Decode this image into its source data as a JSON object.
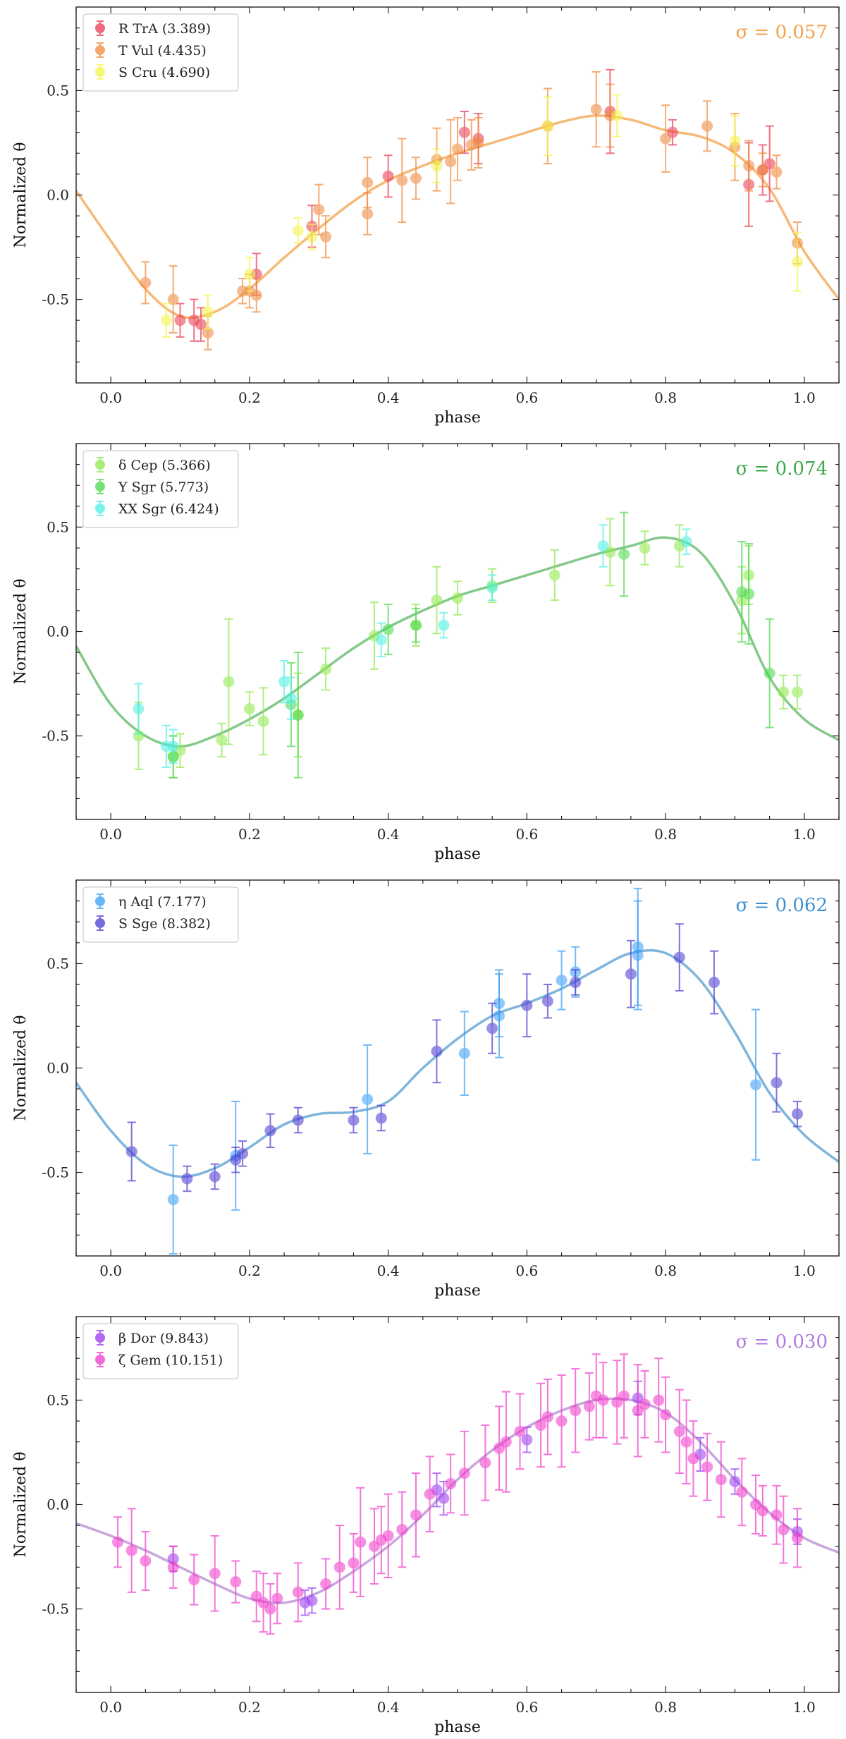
{
  "chart_data": [
    {
      "type": "scatter",
      "xlabel": "phase",
      "ylabel": "Normalized θ",
      "xlim": [
        -0.05,
        1.05
      ],
      "ylim": [
        -0.9,
        0.9
      ],
      "xticks": [
        "0.0",
        "0.2",
        "0.4",
        "0.6",
        "0.8",
        "1.0"
      ],
      "xtick_values": [
        0.0,
        0.2,
        0.4,
        0.6,
        0.8,
        1.0
      ],
      "yticks": [
        "-0.5",
        "0.0",
        "0.5"
      ],
      "ytick_values": [
        -0.5,
        0.0,
        0.5
      ],
      "annotation": "σ = 0.057",
      "annotation_color": "#f5a04a",
      "legend_position": "top-left",
      "fit_color": "#f7b978",
      "fit_curve": {
        "x": [
          -0.05,
          0.0,
          0.05,
          0.1,
          0.15,
          0.2,
          0.25,
          0.3,
          0.35,
          0.4,
          0.45,
          0.5,
          0.55,
          0.6,
          0.65,
          0.7,
          0.75,
          0.8,
          0.85,
          0.9,
          0.95,
          1.0,
          1.05
        ],
        "y": [
          0.02,
          -0.22,
          -0.45,
          -0.58,
          -0.56,
          -0.45,
          -0.3,
          -0.16,
          -0.03,
          0.07,
          0.14,
          0.2,
          0.25,
          0.3,
          0.35,
          0.38,
          0.36,
          0.31,
          0.28,
          0.2,
          0.03,
          -0.27,
          -0.5
        ]
      },
      "series": [
        {
          "name": "R TrA (3.389)",
          "color": "#e8384f",
          "x": [
            0.1,
            0.12,
            0.13,
            0.21,
            0.29,
            0.4,
            0.51,
            0.53,
            0.72,
            0.81,
            0.92,
            0.94,
            0.95
          ],
          "y": [
            -0.6,
            -0.6,
            -0.62,
            -0.38,
            -0.15,
            0.09,
            0.3,
            0.27,
            0.4,
            0.3,
            0.05,
            0.12,
            0.15
          ],
          "err": [
            0.08,
            0.1,
            0.08,
            0.1,
            0.1,
            0.1,
            0.1,
            0.12,
            0.2,
            0.06,
            0.2,
            0.12,
            0.18
          ]
        },
        {
          "name": "T Vul (4.435)",
          "color": "#f08a3c",
          "x": [
            0.05,
            0.09,
            0.14,
            0.19,
            0.2,
            0.21,
            0.3,
            0.31,
            0.37,
            0.37,
            0.42,
            0.44,
            0.47,
            0.49,
            0.5,
            0.52,
            0.53,
            0.63,
            0.7,
            0.72,
            0.8,
            0.86,
            0.9,
            0.92,
            0.94,
            0.96,
            0.99
          ],
          "y": [
            -0.42,
            -0.5,
            -0.66,
            -0.46,
            -0.46,
            -0.48,
            -0.07,
            -0.2,
            0.06,
            -0.09,
            0.07,
            0.08,
            0.17,
            0.16,
            0.22,
            0.24,
            0.25,
            0.33,
            0.41,
            0.38,
            0.27,
            0.33,
            0.23,
            0.14,
            0.12,
            0.11,
            -0.23
          ],
          "err": [
            0.1,
            0.16,
            0.08,
            0.06,
            0.08,
            0.08,
            0.12,
            0.1,
            0.12,
            0.1,
            0.2,
            0.1,
            0.15,
            0.2,
            0.15,
            0.12,
            0.12,
            0.18,
            0.18,
            0.15,
            0.16,
            0.12,
            0.16,
            0.12,
            0.08,
            0.08,
            0.1
          ]
        },
        {
          "name": "S Cru (4.690)",
          "color": "#f5f54a",
          "x": [
            0.08,
            0.14,
            0.2,
            0.27,
            0.29,
            0.47,
            0.63,
            0.73,
            0.9,
            0.99
          ],
          "y": [
            -0.6,
            -0.56,
            -0.38,
            -0.17,
            -0.2,
            0.14,
            0.33,
            0.38,
            0.26,
            -0.32
          ],
          "err": [
            0.08,
            0.08,
            0.08,
            0.06,
            0.06,
            0.08,
            0.14,
            0.1,
            0.12,
            0.14
          ]
        }
      ]
    },
    {
      "type": "scatter",
      "xlabel": "phase",
      "ylabel": "Normalized θ",
      "xlim": [
        -0.05,
        1.05
      ],
      "ylim": [
        -0.9,
        0.9
      ],
      "xticks": [
        "0.0",
        "0.2",
        "0.4",
        "0.6",
        "0.8",
        "1.0"
      ],
      "xtick_values": [
        0.0,
        0.2,
        0.4,
        0.6,
        0.8,
        1.0
      ],
      "yticks": [
        "-0.5",
        "0.0",
        "0.5"
      ],
      "ytick_values": [
        -0.5,
        0.0,
        0.5
      ],
      "annotation": "σ = 0.074",
      "annotation_color": "#3aa84a",
      "legend_position": "top-left",
      "fit_color": "#84c98a",
      "fit_curve": {
        "x": [
          -0.05,
          0.0,
          0.05,
          0.1,
          0.15,
          0.2,
          0.25,
          0.3,
          0.35,
          0.4,
          0.45,
          0.5,
          0.55,
          0.6,
          0.65,
          0.7,
          0.75,
          0.8,
          0.85,
          0.9,
          0.95,
          1.0,
          1.05
        ],
        "y": [
          -0.07,
          -0.35,
          -0.5,
          -0.55,
          -0.5,
          -0.42,
          -0.32,
          -0.2,
          -0.08,
          0.02,
          0.1,
          0.17,
          0.22,
          0.27,
          0.32,
          0.37,
          0.41,
          0.45,
          0.38,
          0.13,
          -0.22,
          -0.42,
          -0.52
        ]
      },
      "series": [
        {
          "name": "δ Cep (5.366)",
          "color": "#8ee84a",
          "x": [
            0.04,
            0.09,
            0.1,
            0.16,
            0.17,
            0.2,
            0.22,
            0.27,
            0.31,
            0.38,
            0.44,
            0.47,
            0.5,
            0.55,
            0.64,
            0.72,
            0.77,
            0.82,
            0.91,
            0.92,
            0.97,
            0.99
          ],
          "y": [
            -0.5,
            -0.6,
            -0.57,
            -0.52,
            -0.24,
            -0.37,
            -0.43,
            -0.4,
            -0.18,
            -0.02,
            0.03,
            0.15,
            0.16,
            0.22,
            0.27,
            0.38,
            0.4,
            0.41,
            0.15,
            0.27,
            -0.29,
            -0.29
          ],
          "err": [
            0.16,
            0.1,
            0.08,
            0.08,
            0.3,
            0.08,
            0.16,
            0.2,
            0.1,
            0.16,
            0.1,
            0.16,
            0.08,
            0.08,
            0.12,
            0.16,
            0.08,
            0.1,
            0.16,
            0.14,
            0.08,
            0.08
          ]
        },
        {
          "name": "Y Sgr (5.773)",
          "color": "#4ad84a",
          "x": [
            0.09,
            0.26,
            0.27,
            0.4,
            0.44,
            0.74,
            0.91,
            0.92,
            0.95
          ],
          "y": [
            -0.6,
            -0.35,
            -0.4,
            0.01,
            0.03,
            0.37,
            0.19,
            0.18,
            -0.2
          ],
          "err": [
            0.1,
            0.2,
            0.3,
            0.12,
            0.08,
            0.2,
            0.24,
            0.24,
            0.26
          ]
        },
        {
          "name": "XX Sgr (6.424)",
          "color": "#4af0e4",
          "x": [
            0.04,
            0.08,
            0.09,
            0.25,
            0.26,
            0.39,
            0.48,
            0.55,
            0.71,
            0.83
          ],
          "y": [
            -0.37,
            -0.55,
            -0.55,
            -0.24,
            -0.32,
            -0.04,
            0.03,
            0.21,
            0.41,
            0.43
          ],
          "err": [
            0.12,
            0.1,
            0.08,
            0.1,
            0.1,
            0.08,
            0.06,
            0.06,
            0.1,
            0.06
          ]
        }
      ]
    },
    {
      "type": "scatter",
      "xlabel": "phase",
      "ylabel": "Normalized θ",
      "xlim": [
        -0.05,
        1.05
      ],
      "ylim": [
        -0.9,
        0.9
      ],
      "xticks": [
        "0.0",
        "0.2",
        "0.4",
        "0.6",
        "0.8",
        "1.0"
      ],
      "xtick_values": [
        0.0,
        0.2,
        0.4,
        0.6,
        0.8,
        1.0
      ],
      "yticks": [
        "-0.5",
        "0.0",
        "0.5"
      ],
      "ytick_values": [
        -0.5,
        0.0,
        0.5
      ],
      "annotation": "σ = 0.062",
      "annotation_color": "#3f8fcf",
      "legend_position": "top-left",
      "fit_color": "#7fb5dc",
      "fit_curve": {
        "x": [
          -0.05,
          0.0,
          0.05,
          0.1,
          0.15,
          0.2,
          0.25,
          0.3,
          0.35,
          0.4,
          0.45,
          0.5,
          0.55,
          0.6,
          0.65,
          0.7,
          0.75,
          0.8,
          0.85,
          0.9,
          0.95,
          1.0,
          1.05
        ],
        "y": [
          -0.07,
          -0.3,
          -0.46,
          -0.52,
          -0.48,
          -0.38,
          -0.27,
          -0.22,
          -0.21,
          -0.16,
          0.0,
          0.14,
          0.25,
          0.31,
          0.38,
          0.47,
          0.55,
          0.55,
          0.42,
          0.17,
          -0.12,
          -0.32,
          -0.45
        ]
      },
      "series": [
        {
          "name": "η Aql (7.177)",
          "color": "#3a9ef5",
          "x": [
            0.09,
            0.18,
            0.37,
            0.51,
            0.56,
            0.56,
            0.65,
            0.67,
            0.76,
            0.76,
            0.93
          ],
          "y": [
            -0.63,
            -0.42,
            -0.15,
            0.07,
            0.25,
            0.31,
            0.42,
            0.46,
            0.58,
            0.54,
            -0.08
          ],
          "err": [
            0.26,
            0.26,
            0.26,
            0.2,
            0.2,
            0.16,
            0.14,
            0.12,
            0.28,
            0.26,
            0.36
          ]
        },
        {
          "name": "S Sge (8.382)",
          "color": "#4a3ad0",
          "x": [
            0.03,
            0.11,
            0.15,
            0.18,
            0.19,
            0.23,
            0.27,
            0.35,
            0.39,
            0.47,
            0.55,
            0.6,
            0.63,
            0.67,
            0.75,
            0.82,
            0.87,
            0.96,
            0.99
          ],
          "y": [
            -0.4,
            -0.53,
            -0.52,
            -0.44,
            -0.41,
            -0.3,
            -0.25,
            -0.25,
            -0.24,
            0.08,
            0.19,
            0.3,
            0.32,
            0.41,
            0.45,
            0.53,
            0.41,
            -0.07,
            -0.22
          ],
          "err": [
            0.14,
            0.06,
            0.06,
            0.06,
            0.06,
            0.08,
            0.06,
            0.06,
            0.06,
            0.15,
            0.12,
            0.15,
            0.08,
            0.06,
            0.16,
            0.16,
            0.15,
            0.14,
            0.06
          ]
        }
      ]
    },
    {
      "type": "scatter",
      "xlabel": "phase",
      "ylabel": "Normalized θ",
      "xlim": [
        -0.05,
        1.05
      ],
      "ylim": [
        -0.9,
        0.9
      ],
      "xticks": [
        "0.0",
        "0.2",
        "0.4",
        "0.6",
        "0.8",
        "1.0"
      ],
      "xtick_values": [
        0.0,
        0.2,
        0.4,
        0.6,
        0.8,
        1.0
      ],
      "yticks": [
        "-0.5",
        "0.0",
        "0.5"
      ],
      "ytick_values": [
        -0.5,
        0.0,
        0.5
      ],
      "annotation": "σ = 0.030",
      "annotation_color": "#b07ae0",
      "legend_position": "top-left",
      "fit_color": "#c9a6dd",
      "fit_curve": {
        "x": [
          -0.05,
          0.0,
          0.05,
          0.1,
          0.15,
          0.2,
          0.25,
          0.3,
          0.35,
          0.4,
          0.45,
          0.5,
          0.55,
          0.6,
          0.65,
          0.7,
          0.75,
          0.8,
          0.85,
          0.9,
          0.95,
          1.0,
          1.05
        ],
        "y": [
          -0.09,
          -0.15,
          -0.22,
          -0.3,
          -0.38,
          -0.45,
          -0.47,
          -0.42,
          -0.32,
          -0.2,
          -0.05,
          0.12,
          0.26,
          0.37,
          0.45,
          0.5,
          0.5,
          0.44,
          0.3,
          0.12,
          -0.04,
          -0.16,
          -0.23
        ]
      },
      "series": [
        {
          "name": "β Dor (9.843)",
          "color": "#9a3af0",
          "x": [
            0.09,
            0.28,
            0.29,
            0.47,
            0.48,
            0.6,
            0.76,
            0.85,
            0.9,
            0.99
          ],
          "y": [
            -0.26,
            -0.47,
            -0.46,
            0.07,
            0.03,
            0.31,
            0.51,
            0.24,
            0.11,
            -0.13
          ],
          "err": [
            0.06,
            0.06,
            0.06,
            0.08,
            0.08,
            0.06,
            0.08,
            0.08,
            0.06,
            0.06
          ]
        },
        {
          "name": "ζ Gem (10.151)",
          "color": "#f03acb",
          "x": [
            0.01,
            0.03,
            0.05,
            0.09,
            0.12,
            0.15,
            0.18,
            0.21,
            0.22,
            0.23,
            0.24,
            0.27,
            0.31,
            0.33,
            0.35,
            0.36,
            0.38,
            0.39,
            0.4,
            0.42,
            0.44,
            0.46,
            0.49,
            0.51,
            0.54,
            0.56,
            0.57,
            0.59,
            0.62,
            0.63,
            0.65,
            0.67,
            0.69,
            0.7,
            0.71,
            0.73,
            0.74,
            0.76,
            0.77,
            0.79,
            0.8,
            0.82,
            0.83,
            0.84,
            0.86,
            0.88,
            0.91,
            0.93,
            0.94,
            0.96,
            0.97,
            0.99
          ],
          "y": [
            -0.18,
            -0.22,
            -0.27,
            -0.3,
            -0.36,
            -0.33,
            -0.37,
            -0.44,
            -0.47,
            -0.5,
            -0.45,
            -0.42,
            -0.38,
            -0.3,
            -0.28,
            -0.18,
            -0.2,
            -0.17,
            -0.15,
            -0.12,
            -0.05,
            0.05,
            0.1,
            0.15,
            0.2,
            0.27,
            0.3,
            0.35,
            0.38,
            0.42,
            0.4,
            0.45,
            0.47,
            0.52,
            0.5,
            0.49,
            0.52,
            0.45,
            0.48,
            0.5,
            0.43,
            0.35,
            0.3,
            0.22,
            0.18,
            0.12,
            0.06,
            0.0,
            -0.03,
            -0.05,
            -0.12,
            -0.16
          ],
          "err": [
            0.12,
            0.2,
            0.14,
            0.1,
            0.12,
            0.18,
            0.1,
            0.12,
            0.14,
            0.12,
            0.12,
            0.14,
            0.12,
            0.2,
            0.14,
            0.26,
            0.18,
            0.16,
            0.2,
            0.18,
            0.2,
            0.18,
            0.14,
            0.2,
            0.18,
            0.2,
            0.24,
            0.18,
            0.2,
            0.18,
            0.22,
            0.2,
            0.16,
            0.2,
            0.18,
            0.2,
            0.2,
            0.22,
            0.16,
            0.2,
            0.18,
            0.2,
            0.2,
            0.18,
            0.16,
            0.18,
            0.16,
            0.14,
            0.12,
            0.14,
            0.16,
            0.14
          ]
        }
      ]
    }
  ]
}
